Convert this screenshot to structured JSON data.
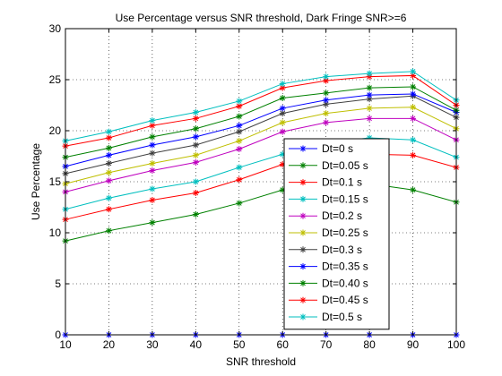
{
  "chart_data": {
    "type": "line",
    "title": "Use Percentage versus SNR threshold, Dark Fringe SNR>=6",
    "xlabel": "SNR threshold",
    "ylabel": "Use Percentage",
    "xlim": [
      10,
      100
    ],
    "ylim": [
      0,
      30
    ],
    "xticks": [
      10,
      20,
      30,
      40,
      50,
      60,
      70,
      80,
      90,
      100
    ],
    "yticks": [
      0,
      5,
      10,
      15,
      20,
      25,
      30
    ],
    "grid": true,
    "legend": "inside-lower-right",
    "x": [
      10,
      20,
      30,
      40,
      50,
      60,
      70,
      80,
      90,
      100
    ],
    "series": [
      {
        "name": "Dt=0 s",
        "color": "#0000ff",
        "values": [
          0,
          0,
          0,
          0,
          0,
          0,
          0,
          0,
          0,
          0
        ]
      },
      {
        "name": "Dt=0.05 s",
        "color": "#008000",
        "values": [
          9.2,
          10.2,
          11.0,
          11.8,
          12.9,
          14.2,
          15.0,
          14.8,
          14.2,
          13.0
        ]
      },
      {
        "name": "Dt=0.1 s",
        "color": "#ff0000",
        "values": [
          11.3,
          12.3,
          13.2,
          13.9,
          15.2,
          16.7,
          17.5,
          17.7,
          17.6,
          16.4
        ]
      },
      {
        "name": "Dt=0.15 s",
        "color": "#00bfbf",
        "values": [
          12.3,
          13.4,
          14.3,
          15.0,
          16.4,
          17.7,
          18.8,
          19.3,
          19.1,
          17.4
        ]
      },
      {
        "name": "Dt=0.2 s",
        "color": "#bf00bf",
        "values": [
          14.0,
          15.1,
          16.1,
          16.9,
          18.2,
          19.9,
          20.8,
          21.2,
          21.2,
          19.1
        ]
      },
      {
        "name": "Dt=0.25 s",
        "color": "#bfbf00",
        "values": [
          14.8,
          15.9,
          16.8,
          17.6,
          19.0,
          20.8,
          21.7,
          22.2,
          22.3,
          20.2
        ]
      },
      {
        "name": "Dt=0.3 s",
        "color": "#404040",
        "values": [
          15.8,
          16.8,
          17.8,
          18.6,
          19.9,
          21.7,
          22.6,
          23.1,
          23.4,
          21.3
        ]
      },
      {
        "name": "Dt=0.35 s",
        "color": "#0000ff",
        "values": [
          16.5,
          17.6,
          18.6,
          19.4,
          20.5,
          22.2,
          23.0,
          23.5,
          23.6,
          21.8
        ]
      },
      {
        "name": "Dt=0.40 s",
        "color": "#008000",
        "values": [
          17.4,
          18.3,
          19.4,
          20.2,
          21.4,
          23.2,
          23.7,
          24.2,
          24.3,
          22.0
        ]
      },
      {
        "name": "Dt=0.45 s",
        "color": "#ff0000",
        "values": [
          18.5,
          19.3,
          20.5,
          21.2,
          22.4,
          24.2,
          24.9,
          25.3,
          25.4,
          22.5
        ]
      },
      {
        "name": "Dt=0.5 s",
        "color": "#00bfbf",
        "values": [
          19.0,
          19.9,
          21.0,
          21.8,
          22.9,
          24.6,
          25.3,
          25.6,
          25.8,
          23.0
        ]
      }
    ]
  }
}
